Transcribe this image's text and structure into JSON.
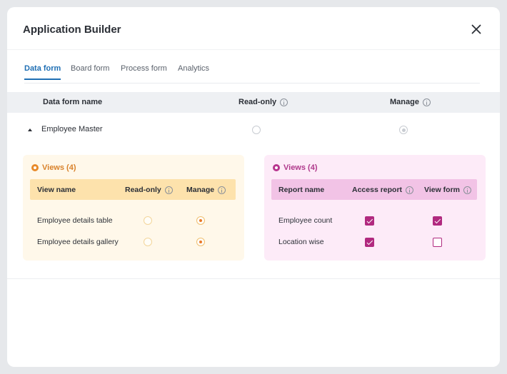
{
  "header": {
    "title": "Application Builder",
    "close_icon": "close-icon"
  },
  "tabs": [
    {
      "label": "Data form",
      "active": true
    },
    {
      "label": "Board form",
      "active": false
    },
    {
      "label": "Process form",
      "active": false
    },
    {
      "label": "Analytics",
      "active": false
    }
  ],
  "table": {
    "columns": [
      "Data form name",
      "Read-only",
      "Manage"
    ],
    "rows": [
      {
        "name": "Employee Master",
        "expanded": true,
        "read_only": "unselected",
        "manage": "selected-disabled"
      }
    ]
  },
  "views_panel": {
    "title": "Views (4)",
    "icon": "eye-icon",
    "accent": "#e88a2a",
    "columns": [
      "View name",
      "Read-only",
      "Manage"
    ],
    "rows": [
      {
        "name": "Employee details table",
        "read_only": false,
        "manage": true
      },
      {
        "name": "Employee details gallery",
        "read_only": false,
        "manage": true
      }
    ]
  },
  "reports_panel": {
    "title": "Views (4)",
    "icon": "eye-icon",
    "accent": "#b1297f",
    "columns": [
      "Report name",
      "Access report",
      "View form"
    ],
    "rows": [
      {
        "name": "Employee count",
        "access_report": true,
        "view_form": true
      },
      {
        "name": "Location wise",
        "access_report": true,
        "view_form": false
      }
    ]
  }
}
